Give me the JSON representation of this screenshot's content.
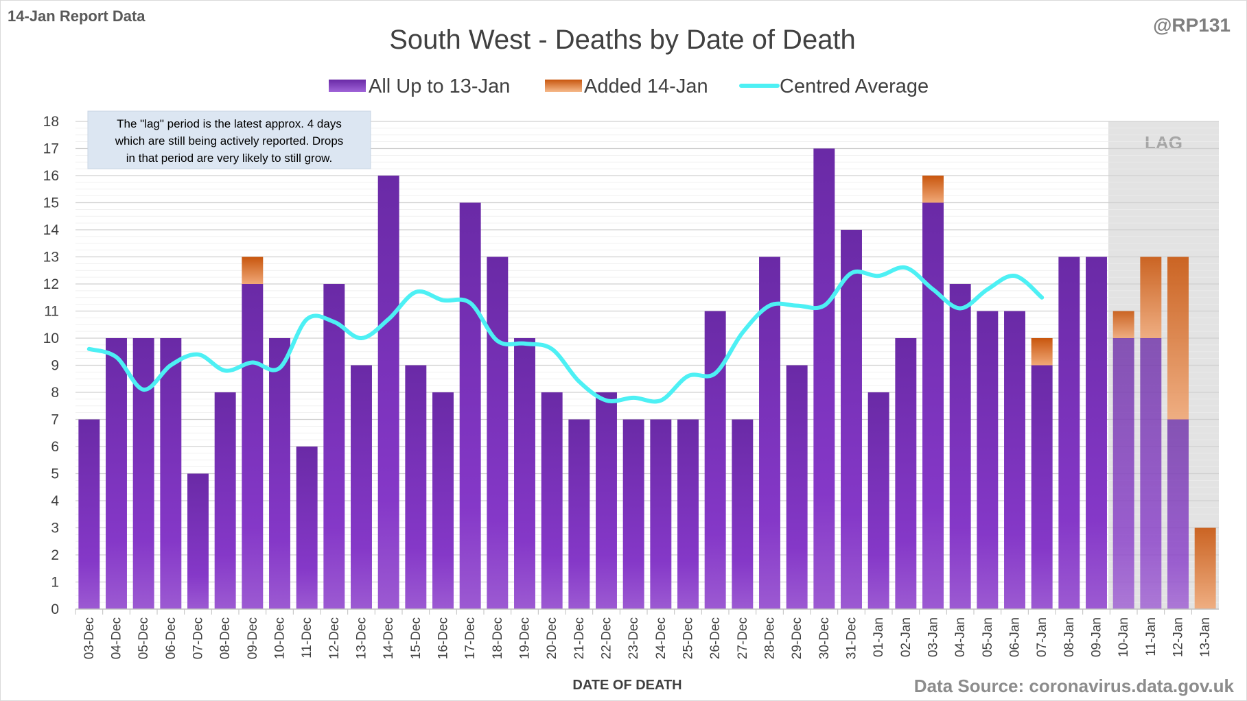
{
  "header": {
    "report_label": "14-Jan Report Data",
    "author": "@RP131",
    "source": "Data Source: coronavirus.data.gov.uk"
  },
  "note": {
    "lines": [
      "The \"lag\" period is the latest approx. 4 days",
      "which are still being actively reported. Drops",
      "in that period are very likely to still grow."
    ]
  },
  "chart_data": {
    "type": "bar",
    "title": "South West - Deaths by Date of Death",
    "xlabel": "DATE OF DEATH",
    "ylabel": "",
    "ylim": [
      0,
      18
    ],
    "yticks": [
      0,
      1,
      2,
      3,
      4,
      5,
      6,
      7,
      8,
      9,
      10,
      11,
      12,
      13,
      14,
      15,
      16,
      17,
      18
    ],
    "grid": true,
    "stacked": true,
    "legend_position": "top",
    "lag_label": "LAG",
    "lag_categories": [
      "10-Jan",
      "11-Jan",
      "12-Jan",
      "13-Jan"
    ],
    "categories": [
      "03-Dec",
      "04-Dec",
      "05-Dec",
      "06-Dec",
      "07-Dec",
      "08-Dec",
      "09-Dec",
      "10-Dec",
      "11-Dec",
      "12-Dec",
      "13-Dec",
      "14-Dec",
      "15-Dec",
      "16-Dec",
      "17-Dec",
      "18-Dec",
      "19-Dec",
      "20-Dec",
      "21-Dec",
      "22-Dec",
      "23-Dec",
      "24-Dec",
      "25-Dec",
      "26-Dec",
      "27-Dec",
      "28-Dec",
      "29-Dec",
      "30-Dec",
      "31-Dec",
      "01-Jan",
      "02-Jan",
      "03-Jan",
      "04-Jan",
      "05-Jan",
      "06-Jan",
      "07-Jan",
      "08-Jan",
      "09-Jan",
      "10-Jan",
      "11-Jan",
      "12-Jan",
      "13-Jan"
    ],
    "series": [
      {
        "name": "All Up to 13-Jan",
        "kind": "bar",
        "color": "#7030a0",
        "values": [
          7,
          10,
          10,
          10,
          5,
          8,
          12,
          10,
          6,
          12,
          9,
          16,
          9,
          8,
          15,
          13,
          10,
          8,
          7,
          8,
          7,
          7,
          7,
          11,
          7,
          13,
          9,
          17,
          14,
          8,
          10,
          15,
          12,
          11,
          11,
          9,
          13,
          13,
          10,
          10,
          7,
          0
        ]
      },
      {
        "name": "Added 14-Jan",
        "kind": "bar",
        "color": "#e46c0a",
        "values": [
          0,
          0,
          0,
          0,
          0,
          0,
          1,
          0,
          0,
          0,
          0,
          0,
          0,
          0,
          0,
          0,
          0,
          0,
          0,
          0,
          0,
          0,
          0,
          0,
          0,
          0,
          0,
          0,
          0,
          0,
          0,
          1,
          0,
          0,
          0,
          1,
          0,
          0,
          1,
          3,
          6,
          3
        ]
      },
      {
        "name": "Centred Average",
        "kind": "line",
        "color": "#4df0f4",
        "values": [
          9.6,
          9.3,
          8.1,
          9.0,
          9.4,
          8.8,
          9.1,
          8.9,
          10.7,
          10.6,
          10.0,
          10.7,
          11.7,
          11.4,
          11.3,
          9.9,
          9.8,
          9.6,
          8.4,
          7.7,
          7.8,
          7.7,
          8.6,
          8.7,
          10.2,
          11.2,
          11.2,
          11.2,
          12.4,
          12.3,
          12.6,
          11.8,
          11.1,
          11.8,
          12.3,
          11.5,
          null,
          null,
          null,
          null,
          null,
          null
        ]
      }
    ]
  }
}
